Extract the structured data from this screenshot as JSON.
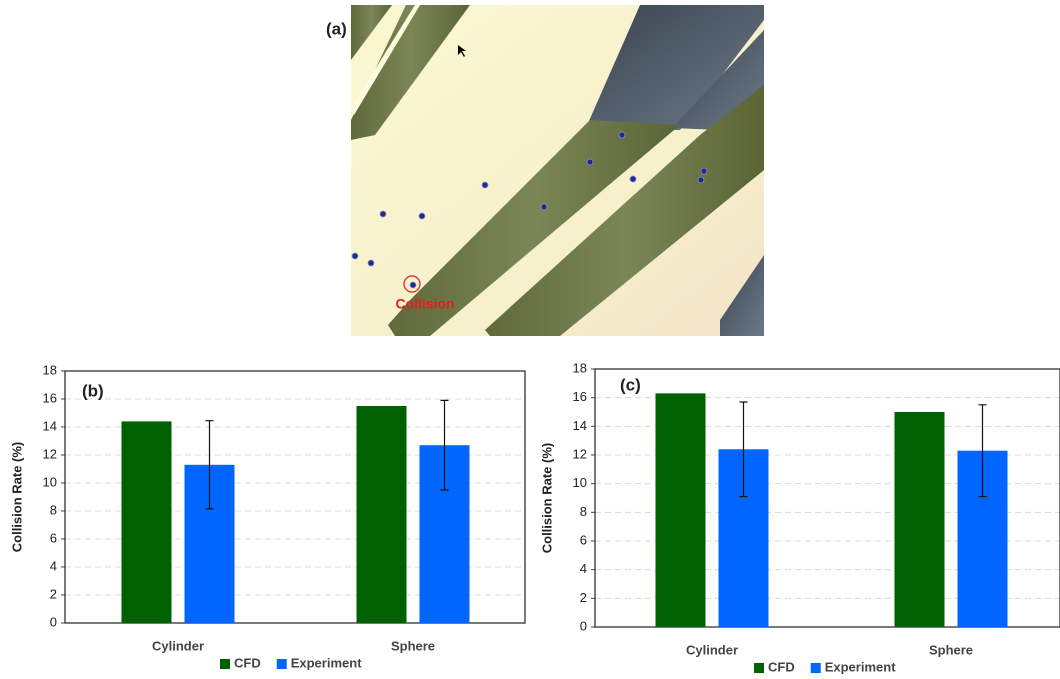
{
  "panel_a": {
    "label": "(a)",
    "annotation": "Collision"
  },
  "chart_data": [
    {
      "type": "bar",
      "panel_label": "(b)",
      "y_label": "Collision Rate (%)",
      "categories": [
        "Cylinder",
        "Sphere"
      ],
      "series": [
        {
          "name": "CFD",
          "color": "#006100",
          "values": [
            14.4,
            15.5
          ]
        },
        {
          "name": "Experiment",
          "color": "#0066ff",
          "values": [
            11.3,
            12.7
          ],
          "errors": [
            3.15,
            3.2
          ]
        }
      ],
      "ylim": [
        0,
        18
      ],
      "yticks": [
        0,
        2,
        4,
        6,
        8,
        10,
        12,
        14,
        16,
        18
      ],
      "grid": true,
      "legend": "bottom"
    },
    {
      "type": "bar",
      "panel_label": "(c)",
      "y_label": "Collision Rate (%)",
      "categories": [
        "Cylinder",
        "Sphere"
      ],
      "series": [
        {
          "name": "CFD",
          "color": "#006100",
          "values": [
            16.3,
            15.0
          ]
        },
        {
          "name": "Experiment",
          "color": "#0066ff",
          "values": [
            12.4,
            12.3
          ],
          "errors": [
            3.3,
            3.2
          ]
        }
      ],
      "ylim": [
        0,
        18
      ],
      "yticks": [
        0,
        2,
        4,
        6,
        8,
        10,
        12,
        14,
        16,
        18
      ],
      "grid": true,
      "legend": "bottom"
    }
  ]
}
